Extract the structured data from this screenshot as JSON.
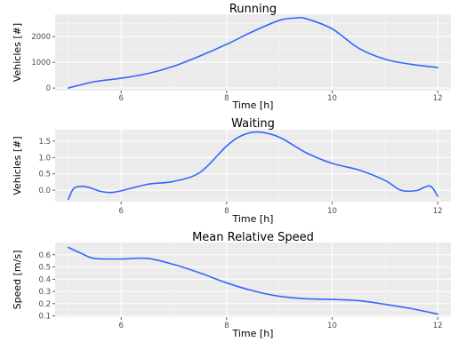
{
  "chart_data": [
    {
      "type": "line",
      "title": "Running",
      "xlabel": "Time [h]",
      "ylabel": "Vehicles [#]",
      "xlim": [
        4.75,
        12.25
      ],
      "ylim": [
        -100,
        2870
      ],
      "x_ticks": [
        6,
        8,
        10,
        12
      ],
      "y_ticks": [
        0,
        1000,
        2000
      ],
      "x_tick_labels": [
        "6",
        "8",
        "10",
        "12"
      ],
      "y_tick_labels": [
        "0",
        "1000",
        "2000"
      ],
      "grid": true,
      "line_color": "#3366ff",
      "panel_color": "#ebebeb",
      "series": [
        {
          "x": [
            5.0,
            5.5,
            6.0,
            6.5,
            7.0,
            7.5,
            8.0,
            8.5,
            9.0,
            9.3,
            9.5,
            10.0,
            10.5,
            11.0,
            11.5,
            12.0
          ],
          "y": [
            0,
            250,
            380,
            560,
            850,
            1250,
            1700,
            2200,
            2630,
            2720,
            2700,
            2300,
            1550,
            1120,
            920,
            800
          ]
        }
      ]
    },
    {
      "type": "line",
      "title": "Waiting",
      "xlabel": "Time [h]",
      "ylabel": "Vehicles [#]",
      "xlim": [
        4.75,
        12.25
      ],
      "ylim": [
        -0.35,
        1.85
      ],
      "x_ticks": [
        6,
        8,
        10,
        12
      ],
      "y_ticks": [
        0.0,
        0.5,
        1.0,
        1.5
      ],
      "x_tick_labels": [
        "6",
        "8",
        "10",
        "12"
      ],
      "y_tick_labels": [
        "0.0",
        "0.5",
        "1.0",
        "1.5"
      ],
      "grid": true,
      "line_color": "#3366ff",
      "panel_color": "#ebebeb",
      "series": [
        {
          "x": [
            5.0,
            5.1,
            5.25,
            5.4,
            5.6,
            5.8,
            6.0,
            6.5,
            7.0,
            7.5,
            8.0,
            8.3,
            8.6,
            9.0,
            9.5,
            10.0,
            10.5,
            11.0,
            11.3,
            11.6,
            11.85,
            12.0
          ],
          "y": [
            -0.28,
            0.05,
            0.12,
            0.08,
            -0.03,
            -0.07,
            -0.02,
            0.18,
            0.27,
            0.55,
            1.35,
            1.68,
            1.78,
            1.62,
            1.15,
            0.82,
            0.62,
            0.3,
            0.0,
            -0.01,
            0.13,
            -0.18
          ]
        }
      ]
    },
    {
      "type": "line",
      "title": "Mean Relative Speed",
      "xlabel": "Time [h]",
      "ylabel": "Speed [m/s]",
      "xlim": [
        4.75,
        12.25
      ],
      "ylim": [
        0.09,
        0.7
      ],
      "x_ticks": [
        6,
        8,
        10,
        12
      ],
      "y_ticks": [
        0.1,
        0.2,
        0.3,
        0.4,
        0.5,
        0.6
      ],
      "x_tick_labels": [
        "6",
        "8",
        "10",
        "12"
      ],
      "y_tick_labels": [
        "0.1",
        "0.2",
        "0.3",
        "0.4",
        "0.5",
        "0.6"
      ],
      "grid": true,
      "line_color": "#3366ff",
      "panel_color": "#ebebeb",
      "series": [
        {
          "x": [
            5.0,
            5.25,
            5.5,
            6.0,
            6.5,
            7.0,
            7.5,
            8.0,
            8.5,
            9.0,
            9.5,
            10.0,
            10.5,
            11.0,
            11.5,
            12.0
          ],
          "y": [
            0.66,
            0.61,
            0.57,
            0.565,
            0.57,
            0.52,
            0.45,
            0.37,
            0.305,
            0.26,
            0.24,
            0.235,
            0.225,
            0.195,
            0.16,
            0.115
          ]
        }
      ]
    }
  ]
}
